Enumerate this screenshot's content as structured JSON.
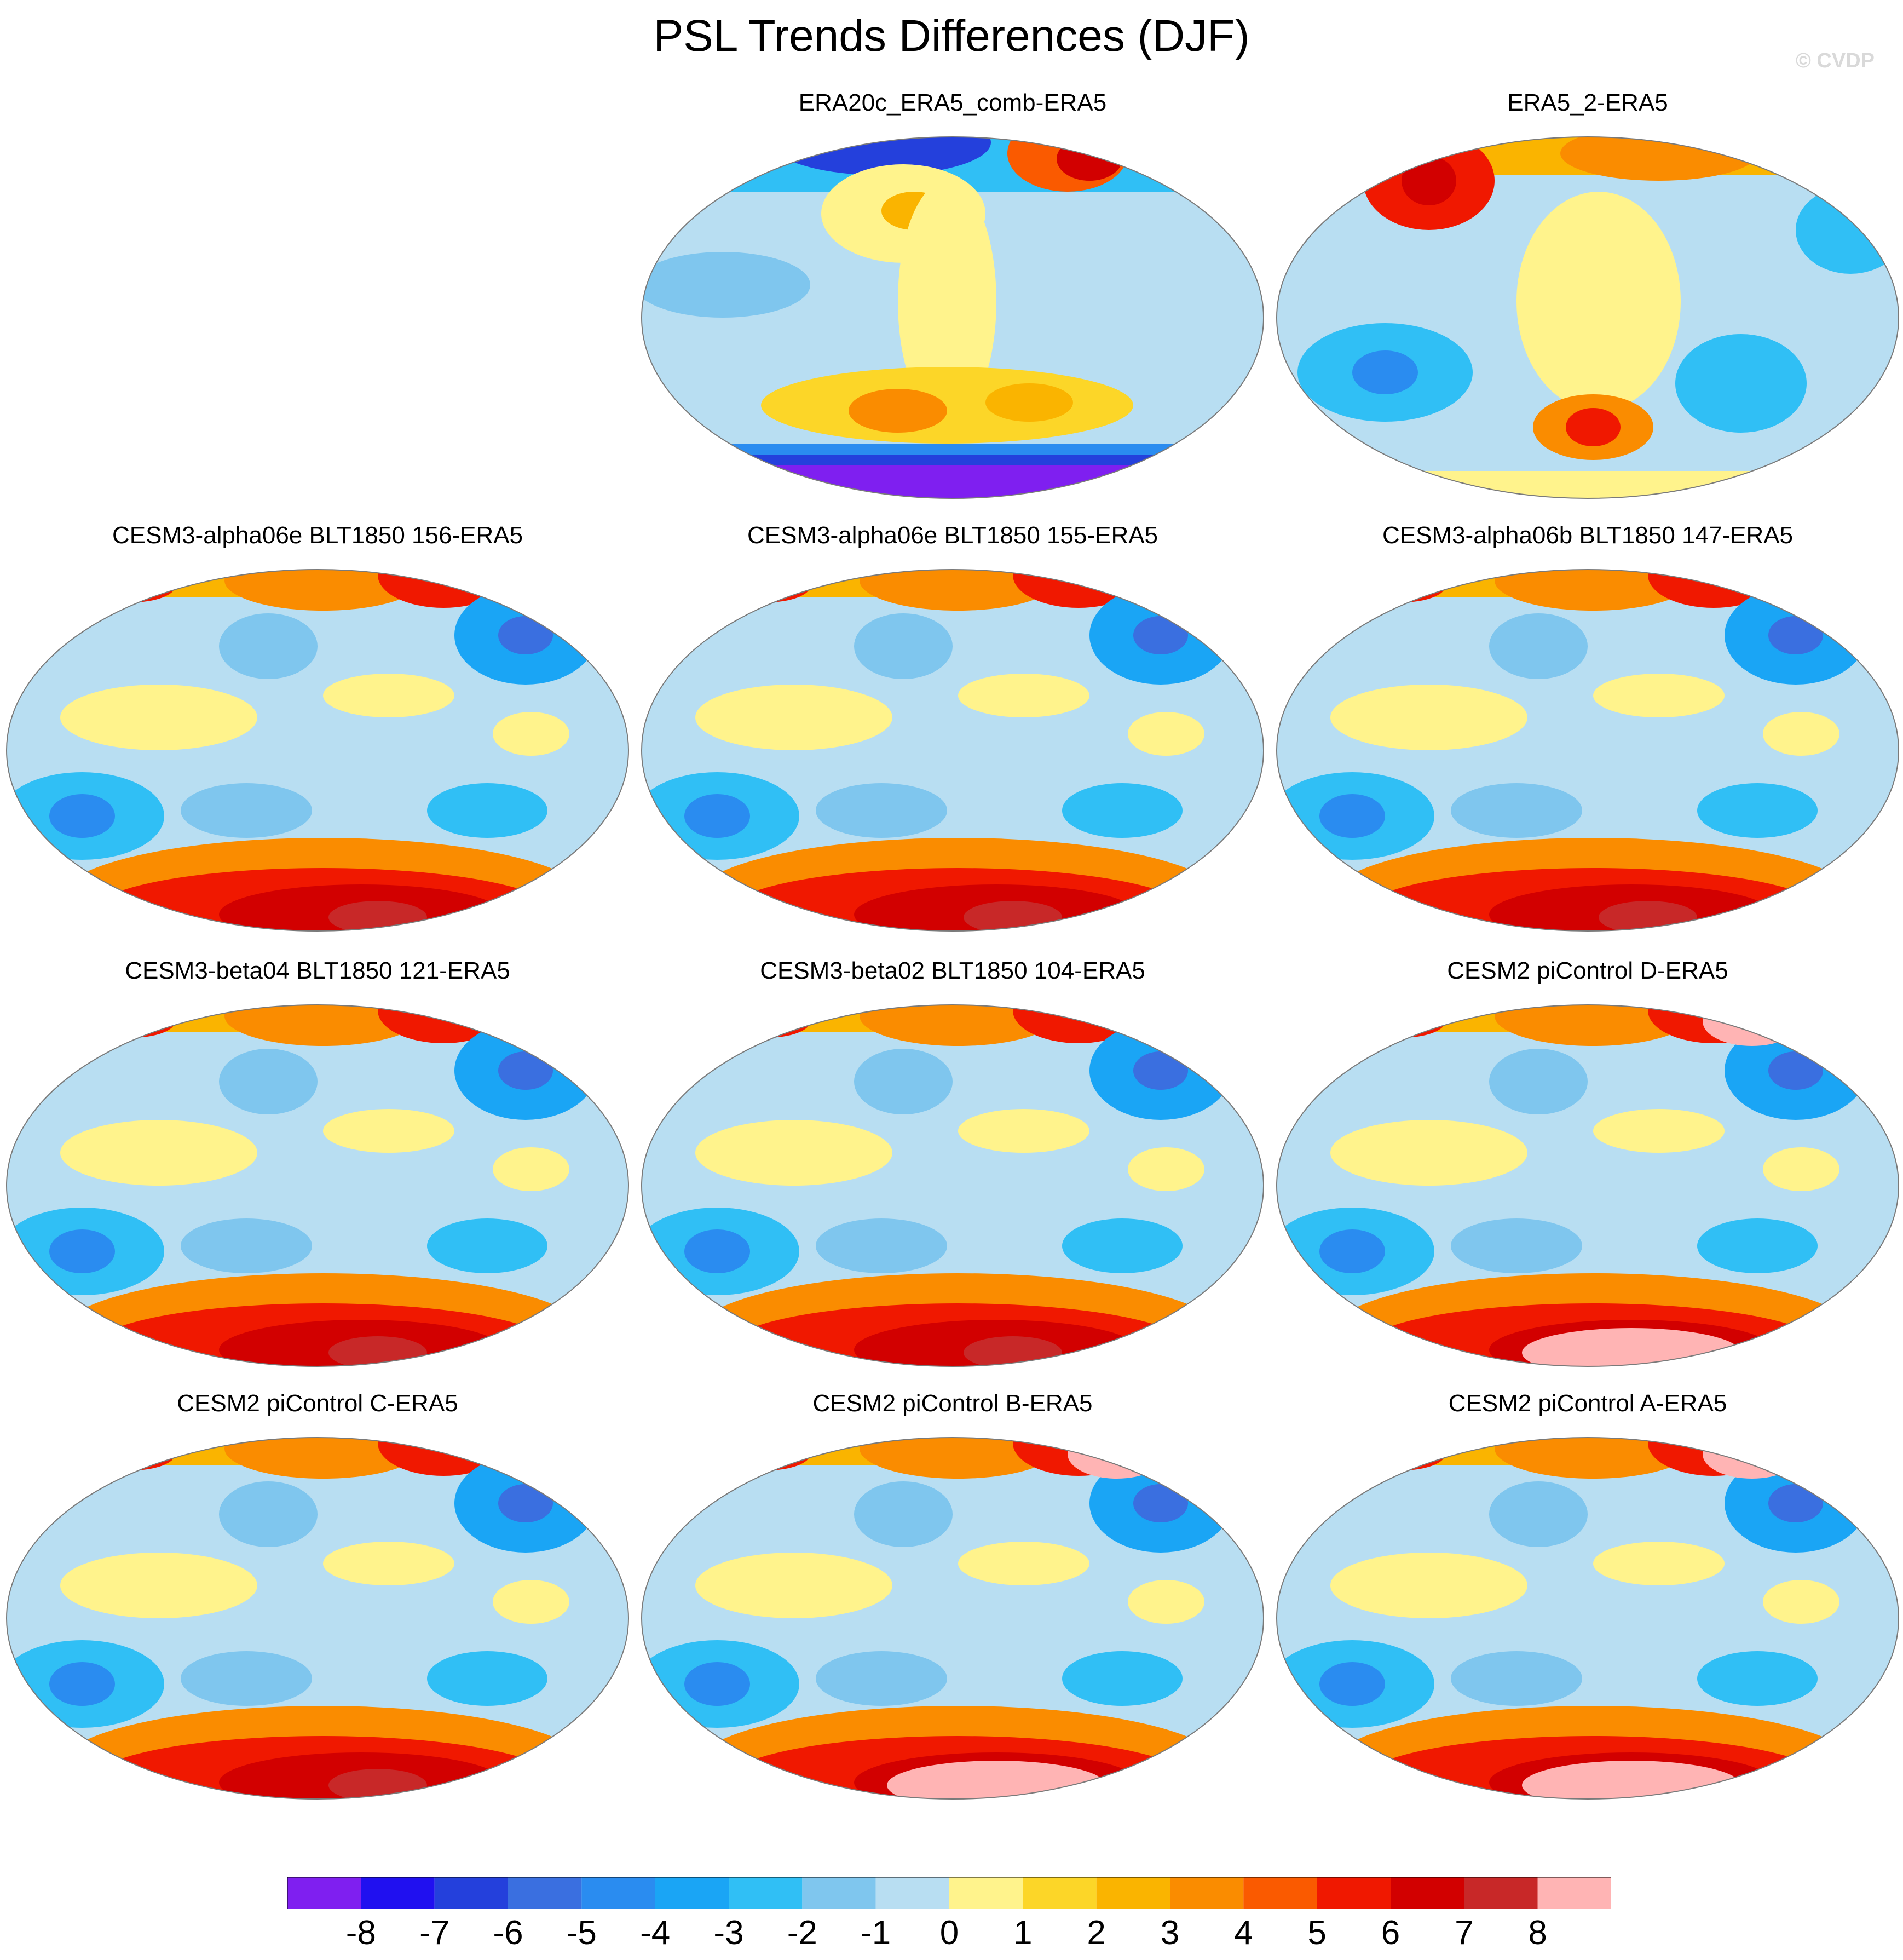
{
  "title": "PSL Trends Differences (DJF)",
  "watermark": "© CVDP",
  "panels": [
    {
      "label": "ERA20c_ERA5_comb-ERA5",
      "pattern": "south-negative"
    },
    {
      "label": "ERA5_2-ERA5",
      "pattern": "mixed"
    },
    {
      "label": "CESM3-alpha06e BLT1850 156-ERA5",
      "pattern": "south-positive"
    },
    {
      "label": "CESM3-alpha06e BLT1850 155-ERA5",
      "pattern": "south-positive"
    },
    {
      "label": "CESM3-alpha06b BLT1850 147-ERA5",
      "pattern": "south-positive"
    },
    {
      "label": "CESM3-beta04 BLT1850 121-ERA5",
      "pattern": "south-positive"
    },
    {
      "label": "CESM3-beta02 BLT1850 104-ERA5",
      "pattern": "south-positive"
    },
    {
      "label": "CESM2 piControl D-ERA5",
      "pattern": "south-strong"
    },
    {
      "label": "CESM2 piControl C-ERA5",
      "pattern": "south-positive"
    },
    {
      "label": "CESM2 piControl B-ERA5",
      "pattern": "south-strong"
    },
    {
      "label": "CESM2 piControl A-ERA5",
      "pattern": "south-strong"
    }
  ],
  "colorbar": {
    "colors": [
      "#7f1ff0",
      "#2010f0",
      "#2440dc",
      "#3a6fe0",
      "#2a8cf0",
      "#1aa5f5",
      "#30bff5",
      "#7fc6ee",
      "#b8def2",
      "#fff38c",
      "#fcd628",
      "#fab400",
      "#fa8c00",
      "#fa5a00",
      "#f01800",
      "#d20000",
      "#c82828",
      "#ffb4b4"
    ],
    "labels": [
      "-8",
      "-7",
      "-6",
      "-5",
      "-4",
      "-3",
      "-2",
      "-1",
      "0",
      "1",
      "2",
      "3",
      "4",
      "5",
      "6",
      "7",
      "8"
    ]
  }
}
